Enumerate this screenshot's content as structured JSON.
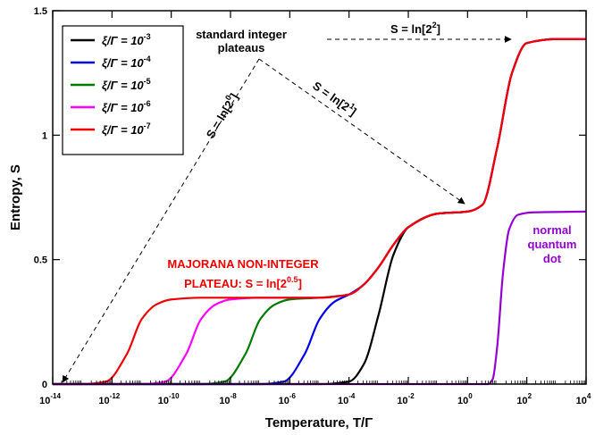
{
  "chart_data": {
    "type": "line",
    "xlabel": "Temperature, T/Γ",
    "ylabel": "Entropy, S",
    "xscale": "log",
    "xlim": [
      1e-14,
      10000.0
    ],
    "ylim": [
      0,
      1.5
    ],
    "xticks": [
      -14,
      -12,
      -10,
      -8,
      -6,
      -4,
      -2,
      0,
      2,
      4
    ],
    "yticks": [
      {
        "value": 0,
        "label": "0"
      },
      {
        "value": 0.5,
        "label": "0.5"
      },
      {
        "value": 1,
        "label": "1"
      },
      {
        "value": 1.5,
        "label": "1.5"
      }
    ],
    "grid": false,
    "legend_position": "top-left",
    "legend_label_prefix": "ξ/Γ = 10",
    "series": [
      {
        "name": "ξ/Γ = 10^-3",
        "exponent": "-3",
        "color": "#000000",
        "points": [
          [
            -14,
            0
          ],
          [
            -5,
            0
          ],
          [
            -4,
            0.01
          ],
          [
            -3.5,
            0.08
          ],
          [
            -3.0,
            0.28
          ],
          [
            -2.5,
            0.52
          ],
          [
            -2,
            0.63
          ],
          [
            -1,
            0.685
          ],
          [
            0,
            0.693
          ],
          [
            0.5,
            0.72
          ],
          [
            1,
            0.95
          ],
          [
            1.5,
            1.25
          ],
          [
            2,
            1.37
          ],
          [
            3,
            1.386
          ],
          [
            4,
            1.386
          ]
        ]
      },
      {
        "name": "ξ/Γ = 10^-4",
        "exponent": "-4",
        "color": "#0000ee",
        "points": [
          [
            -14,
            0
          ],
          [
            -7,
            0
          ],
          [
            -6.2,
            0.01
          ],
          [
            -5.5,
            0.12
          ],
          [
            -5.0,
            0.26
          ],
          [
            -4.5,
            0.33
          ],
          [
            -4,
            0.36
          ],
          [
            -3.5,
            0.4
          ],
          [
            -3,
            0.47
          ],
          [
            -2.5,
            0.56
          ],
          [
            -2,
            0.63
          ],
          [
            -1,
            0.685
          ],
          [
            0,
            0.693
          ],
          [
            0.5,
            0.72
          ],
          [
            1,
            0.95
          ],
          [
            1.5,
            1.25
          ],
          [
            2,
            1.37
          ],
          [
            3,
            1.386
          ],
          [
            4,
            1.386
          ]
        ]
      },
      {
        "name": "ξ/Γ = 10^-5",
        "exponent": "-5",
        "color": "#007a00",
        "points": [
          [
            -14,
            0
          ],
          [
            -9,
            0
          ],
          [
            -8.2,
            0.01
          ],
          [
            -7.5,
            0.12
          ],
          [
            -7.0,
            0.26
          ],
          [
            -6.5,
            0.32
          ],
          [
            -6,
            0.34
          ],
          [
            -5,
            0.347
          ],
          [
            -4,
            0.36
          ],
          [
            -3.5,
            0.4
          ],
          [
            -3,
            0.47
          ],
          [
            -2.5,
            0.56
          ],
          [
            -2,
            0.63
          ],
          [
            -1,
            0.685
          ],
          [
            0,
            0.693
          ],
          [
            0.5,
            0.72
          ],
          [
            1,
            0.95
          ],
          [
            1.5,
            1.25
          ],
          [
            2,
            1.37
          ],
          [
            3,
            1.386
          ],
          [
            4,
            1.386
          ]
        ]
      },
      {
        "name": "ξ/Γ = 10^-6",
        "exponent": "-6",
        "color": "#ff00ff",
        "points": [
          [
            -14,
            0
          ],
          [
            -11,
            0
          ],
          [
            -10.2,
            0.01
          ],
          [
            -9.5,
            0.12
          ],
          [
            -9.0,
            0.26
          ],
          [
            -8.5,
            0.32
          ],
          [
            -8,
            0.34
          ],
          [
            -7,
            0.347
          ],
          [
            -5,
            0.347
          ],
          [
            -4,
            0.36
          ],
          [
            -3.5,
            0.4
          ],
          [
            -3,
            0.47
          ],
          [
            -2.5,
            0.56
          ],
          [
            -2,
            0.63
          ],
          [
            -1,
            0.685
          ],
          [
            0,
            0.693
          ],
          [
            0.5,
            0.72
          ],
          [
            1,
            0.95
          ],
          [
            1.5,
            1.25
          ],
          [
            2,
            1.37
          ],
          [
            3,
            1.386
          ],
          [
            4,
            1.386
          ]
        ]
      },
      {
        "name": "ξ/Γ = 10^-7",
        "exponent": "-7",
        "color": "#ee0000",
        "points": [
          [
            -14,
            0
          ],
          [
            -13,
            0
          ],
          [
            -12.2,
            0.01
          ],
          [
            -11.5,
            0.12
          ],
          [
            -11.0,
            0.26
          ],
          [
            -10.5,
            0.32
          ],
          [
            -10,
            0.34
          ],
          [
            -9,
            0.347
          ],
          [
            -5,
            0.347
          ],
          [
            -4,
            0.36
          ],
          [
            -3.5,
            0.4
          ],
          [
            -3,
            0.47
          ],
          [
            -2.5,
            0.56
          ],
          [
            -2,
            0.63
          ],
          [
            -1,
            0.685
          ],
          [
            0,
            0.693
          ],
          [
            0.5,
            0.72
          ],
          [
            1,
            0.95
          ],
          [
            1.5,
            1.25
          ],
          [
            2,
            1.37
          ],
          [
            3,
            1.386
          ],
          [
            4,
            1.386
          ]
        ]
      },
      {
        "name": "normal quantum dot",
        "color": "#9400d3",
        "in_legend": false,
        "points": [
          [
            -14,
            0
          ],
          [
            0.7,
            0
          ],
          [
            0.85,
            0.02
          ],
          [
            1.0,
            0.15
          ],
          [
            1.2,
            0.45
          ],
          [
            1.4,
            0.62
          ],
          [
            1.7,
            0.68
          ],
          [
            2.2,
            0.69
          ],
          [
            4,
            0.693
          ]
        ]
      }
    ],
    "annotations": {
      "standard_integer": {
        "line1": "standard integer",
        "line2": "plateaus",
        "color": "#000000"
      },
      "s_ln_2_0": {
        "base": "S = ln[2",
        "exp": "0",
        "close": "]"
      },
      "s_ln_2_1": {
        "base": "S = ln[2",
        "exp": "1",
        "close": "]"
      },
      "s_ln_2_2": {
        "base": "S = ln[2",
        "exp": "2",
        "close": "]"
      },
      "majorana": {
        "line1": "MAJORANA NON-INTEGER",
        "line2_base": "PLATEAU: S = ln[2",
        "line2_exp": "0.5",
        "line2_close": "]",
        "color": "#ee0000"
      },
      "normal_dot": {
        "line1": "normal",
        "line2": "quantum",
        "line3": "dot",
        "color": "#9400d3"
      }
    }
  }
}
